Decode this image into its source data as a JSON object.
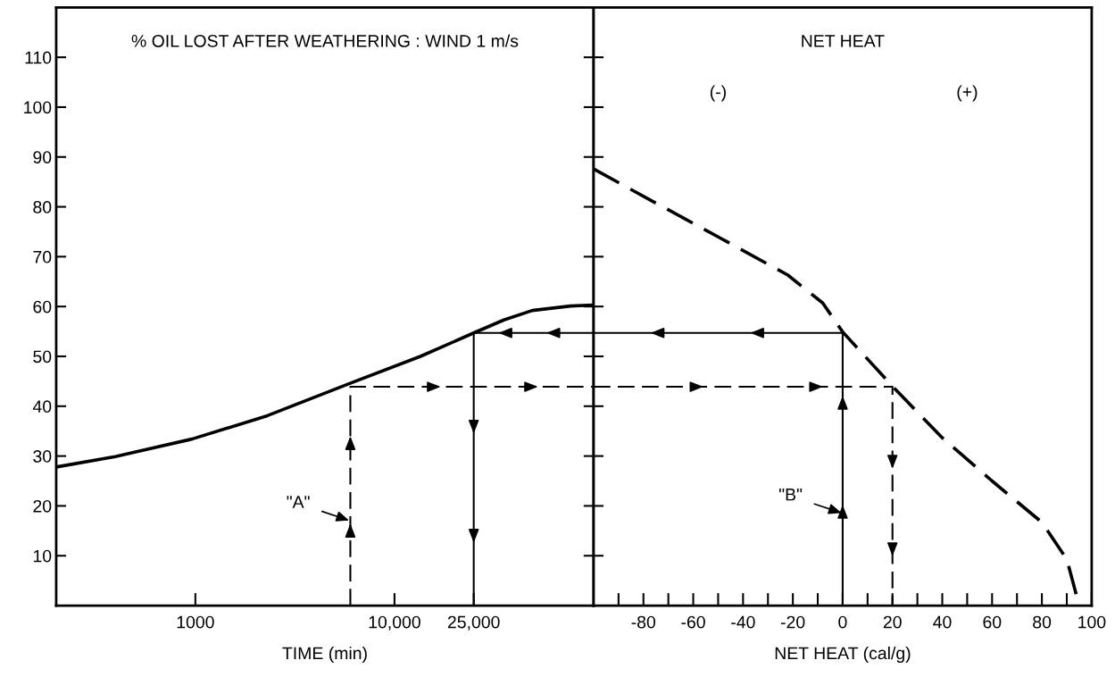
{
  "chart_data": [
    {
      "type": "line",
      "title": "% OIL LOST AFTER WEATHERING : WIND 1 m/s",
      "xlabel": "TIME (min)",
      "log": "x",
      "xlim": [
        200,
        100000
      ],
      "xticks": [
        {
          "value": 1000,
          "label": "1000"
        },
        {
          "value": 10000,
          "label": "10,000"
        },
        {
          "value": 25000,
          "label": "25,000"
        }
      ],
      "ylim": [
        0,
        120
      ],
      "yticks": [
        10,
        20,
        30,
        40,
        50,
        60,
        70,
        80,
        90,
        100,
        110
      ],
      "grid": false,
      "marker": "none",
      "series": [
        {
          "color": "#000000",
          "line_style": "solid",
          "x": [
            200,
            396,
            960,
            2300,
            5990,
            13500,
            25000,
            35400,
            49200,
            76600,
            100000
          ],
          "values": [
            27.8,
            29.9,
            33.4,
            38.1,
            44.6,
            50,
            54.7,
            57.3,
            59.2,
            60.1,
            60.3
          ]
        },
        {
          "color": "#000000",
          "line_style": "dashed",
          "x": [
            6000,
            6000,
            100000
          ],
          "values": [
            0,
            43.9,
            43.9
          ]
        },
        {
          "color": "#000000",
          "line_style": "solid",
          "x": [
            100000,
            25000,
            25000
          ],
          "values": [
            54.7,
            54.7,
            0
          ]
        }
      ],
      "annotations": [
        {
          "text": "\"A\"",
          "x": 6000,
          "y": 17
        }
      ]
    },
    {
      "type": "line",
      "title": "NET HEAT",
      "xlabel": "NET HEAT (cal/g)",
      "xlim": [
        -100,
        100
      ],
      "xticks": [
        {
          "value": -90,
          "label": null
        },
        -80,
        {
          "value": -70,
          "label": null
        },
        -60,
        {
          "value": -50,
          "label": null
        },
        -40,
        {
          "value": -30,
          "label": null
        },
        -20,
        {
          "value": -10,
          "label": null
        },
        0,
        {
          "value": 10,
          "label": null
        },
        20,
        {
          "value": 30,
          "label": null
        },
        40,
        {
          "value": 50,
          "label": null
        },
        60,
        {
          "value": 70,
          "label": null
        },
        80,
        {
          "value": 90,
          "label": null
        },
        100
      ],
      "ylim": [
        0,
        120
      ],
      "yticks": [
        10,
        20,
        30,
        40,
        50,
        60,
        70,
        80,
        90,
        100,
        110
      ],
      "tick_labels": "x",
      "grid": false,
      "marker": "none",
      "series": [
        {
          "color": "#000000",
          "line_style": "dashed",
          "x": [
            -100,
            -77,
            -49,
            -22,
            -8,
            0,
            20,
            39.5,
            60,
            80,
            90,
            95
          ],
          "values": [
            87.6,
            81.3,
            73.7,
            66.3,
            60.7,
            54.9,
            44,
            33.9,
            25,
            16.7,
            9.3,
            0
          ]
        },
        {
          "color": "#000000",
          "line_style": "dashed",
          "x": [
            -100,
            20,
            20
          ],
          "values": [
            43.9,
            43.9,
            0
          ]
        },
        {
          "color": "#000000",
          "line_style": "solid",
          "x": [
            0,
            0,
            -100
          ],
          "values": [
            0,
            54.7,
            54.7
          ]
        }
      ],
      "annotations": [
        "(-)",
        "(+)",
        {
          "text": "\"B\"",
          "x": 0,
          "y": 18.5
        }
      ]
    }
  ]
}
